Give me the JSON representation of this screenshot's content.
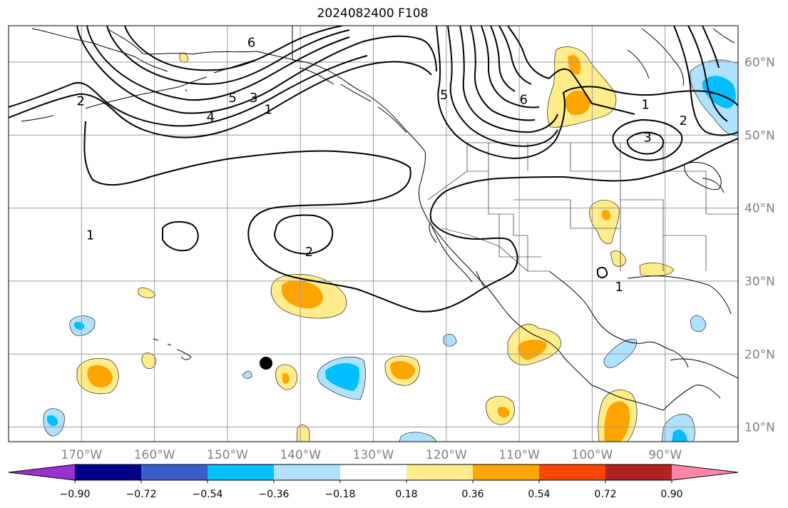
{
  "title": "2024082400 F108",
  "map": {
    "lon_range": [
      -180,
      -80
    ],
    "lat_range": [
      8,
      65
    ],
    "lon_ticks": [
      {
        "lon": -170,
        "label": "170°W"
      },
      {
        "lon": -160,
        "label": "160°W"
      },
      {
        "lon": -150,
        "label": "150°W"
      },
      {
        "lon": -140,
        "label": "140°W"
      },
      {
        "lon": -130,
        "label": "130°W"
      },
      {
        "lon": -120,
        "label": "120°W"
      },
      {
        "lon": -110,
        "label": "110°W"
      },
      {
        "lon": -100,
        "label": "100°W"
      },
      {
        "lon": -90,
        "label": "90°W"
      }
    ],
    "lat_ticks": [
      {
        "lat": 10,
        "label": "10°N"
      },
      {
        "lat": 20,
        "label": "20°N"
      },
      {
        "lat": 30,
        "label": "30°N"
      },
      {
        "lat": 40,
        "label": "40°N"
      },
      {
        "lat": 50,
        "label": "50°N"
      },
      {
        "lat": 60,
        "label": "60°N"
      }
    ],
    "contour_labels": [
      {
        "text": "2",
        "lon": -170.1,
        "lat": 54.8
      },
      {
        "text": "6",
        "lon": -146.7,
        "lat": 62.8
      },
      {
        "text": "5",
        "lon": -149.3,
        "lat": 55.2
      },
      {
        "text": "3",
        "lon": -146.4,
        "lat": 55.2
      },
      {
        "text": "1",
        "lon": -144.4,
        "lat": 53.6
      },
      {
        "text": "4",
        "lon": -152.3,
        "lat": 52.6
      },
      {
        "text": "5",
        "lon": -120.3,
        "lat": 55.6
      },
      {
        "text": "6",
        "lon": -109.4,
        "lat": 55.0
      },
      {
        "text": "1",
        "lon": -92.7,
        "lat": 54.3
      },
      {
        "text": "2",
        "lon": -87.5,
        "lat": 52.1
      },
      {
        "text": "3",
        "lon": -92.4,
        "lat": 49.8
      },
      {
        "text": "1",
        "lon": -168.8,
        "lat": 36.4
      },
      {
        "text": "2",
        "lon": -138.8,
        "lat": 34.1
      },
      {
        "text": "1",
        "lon": -96.3,
        "lat": 29.3
      }
    ],
    "marker": {
      "lon": -144.6,
      "lat": 18.8
    }
  },
  "colorbar": {
    "colors": [
      "#9932cc",
      "#00008b",
      "#3a5fcd",
      "#00bfff",
      "#b0e2ff",
      "#ffffff",
      "#ffec8b",
      "#ffa500",
      "#ff4500",
      "#b22222",
      "#ff88aa"
    ],
    "ticks": [
      "−0.90",
      "−0.72",
      "−0.54",
      "−0.36",
      "−0.18",
      "0.18",
      "0.36",
      "0.54",
      "0.72",
      "0.90"
    ]
  }
}
